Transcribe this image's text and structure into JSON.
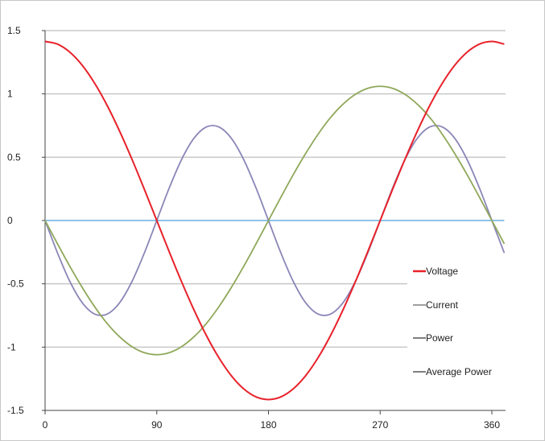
{
  "chart_data": {
    "type": "line",
    "title": "",
    "xlabel": "",
    "ylabel": "",
    "xlim": [
      0,
      370
    ],
    "ylim": [
      -1.5,
      1.5
    ],
    "xticks": [
      0,
      90,
      180,
      270,
      360
    ],
    "yticks": [
      1.5,
      1,
      0.5,
      0,
      -0.5,
      -1,
      -1.5
    ],
    "x_tick_labels": [
      "0",
      "90",
      "180",
      "270",
      "360"
    ],
    "y_tick_labels": [
      "1.5",
      "1",
      "0.5",
      "0",
      "-0.5",
      "-1",
      "-1.5"
    ],
    "grid": "horizontal",
    "legend_position": "right",
    "x": [
      0,
      10,
      20,
      30,
      40,
      50,
      60,
      70,
      80,
      90,
      100,
      110,
      120,
      130,
      140,
      150,
      160,
      170,
      180,
      190,
      200,
      210,
      220,
      230,
      240,
      250,
      260,
      270,
      280,
      290,
      300,
      310,
      320,
      330,
      340,
      350,
      360,
      370
    ],
    "series": [
      {
        "name": "Voltage",
        "color": "#e8212a",
        "values": [
          1.414,
          1.393,
          1.329,
          1.225,
          1.083,
          0.909,
          0.707,
          0.484,
          0.246,
          0.0,
          -0.246,
          -0.484,
          -0.707,
          -0.909,
          -1.083,
          -1.225,
          -1.329,
          -1.393,
          -1.414,
          -1.393,
          -1.329,
          -1.225,
          -1.083,
          -0.909,
          -0.707,
          -0.484,
          -0.246,
          0.0,
          0.246,
          0.484,
          0.707,
          0.909,
          1.083,
          1.225,
          1.329,
          1.393,
          1.414,
          1.393
        ]
      },
      {
        "name": "Current",
        "color": "#8fa85a",
        "values": [
          0.0,
          -0.184,
          -0.363,
          -0.53,
          -0.682,
          -0.813,
          -0.918,
          -0.996,
          -1.044,
          -1.06,
          -1.044,
          -0.996,
          -0.918,
          -0.813,
          -0.682,
          -0.53,
          -0.363,
          -0.184,
          0.0,
          0.184,
          0.363,
          0.53,
          0.682,
          0.813,
          0.918,
          0.996,
          1.044,
          1.06,
          1.044,
          0.996,
          0.918,
          0.813,
          0.682,
          0.53,
          0.363,
          0.184,
          0.0,
          -0.184
        ]
      },
      {
        "name": "Power",
        "color": "#8a86b8",
        "values": [
          0.0,
          -0.256,
          -0.482,
          -0.65,
          -0.739,
          -0.739,
          -0.65,
          -0.482,
          -0.256,
          0.0,
          0.256,
          0.482,
          0.65,
          0.739,
          0.739,
          0.65,
          0.482,
          0.256,
          0.0,
          -0.256,
          -0.482,
          -0.65,
          -0.739,
          -0.739,
          -0.65,
          -0.482,
          -0.256,
          0.0,
          0.256,
          0.482,
          0.65,
          0.739,
          0.739,
          0.65,
          0.482,
          0.256,
          0.0,
          -0.256
        ]
      },
      {
        "name": "Average Power",
        "color": "#4a9fd8",
        "values": [
          0,
          0,
          0,
          0,
          0,
          0,
          0,
          0,
          0,
          0,
          0,
          0,
          0,
          0,
          0,
          0,
          0,
          0,
          0,
          0,
          0,
          0,
          0,
          0,
          0,
          0,
          0,
          0,
          0,
          0,
          0,
          0,
          0,
          0,
          0,
          0,
          0,
          0
        ]
      }
    ]
  },
  "colors": {
    "gridline": "#c8c8c8",
    "axis": "#444444",
    "legend_swatch_current": "#a0a0a0",
    "legend_swatch_power": "#808080",
    "legend_swatch_average": "#808080"
  }
}
